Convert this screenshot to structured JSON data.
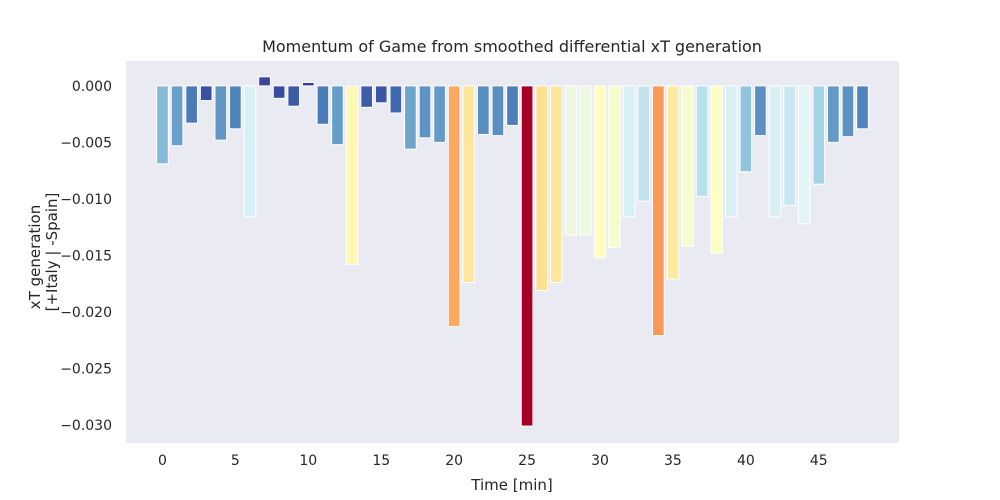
{
  "chart_data": {
    "type": "bar",
    "title": "Momentum of Game from smoothed differential xT generation",
    "xlabel": "Time [min]",
    "ylabel_lines": [
      "xT generation",
      "[+Italy | -Spain]"
    ],
    "xlim": [
      -2.5,
      50.5
    ],
    "ylim": [
      -0.0316,
      0.0022
    ],
    "x_ticks": [
      0,
      5,
      10,
      15,
      20,
      25,
      30,
      35,
      40,
      45
    ],
    "x_tick_labels": [
      "0",
      "5",
      "10",
      "15",
      "20",
      "25",
      "30",
      "35",
      "40",
      "45"
    ],
    "y_ticks": [
      0.0,
      -0.005,
      -0.01,
      -0.015,
      -0.02,
      -0.025,
      -0.03
    ],
    "y_tick_labels": [
      "0.000",
      "−0.005",
      "−0.010",
      "−0.015",
      "−0.020",
      "−0.025",
      "−0.030"
    ],
    "grid": false,
    "background": "#eaeaf2",
    "colormap": "RdYlBu_r",
    "x": [
      0,
      1,
      2,
      3,
      4,
      5,
      6,
      7,
      8,
      9,
      10,
      11,
      12,
      13,
      14,
      15,
      16,
      17,
      18,
      19,
      20,
      21,
      22,
      23,
      24,
      25,
      26,
      27,
      28,
      29,
      30,
      31,
      32,
      33,
      34,
      35,
      36,
      37,
      38,
      39,
      40,
      41,
      42,
      43,
      44,
      45,
      46,
      47,
      48
    ],
    "values": [
      -0.0069,
      -0.0053,
      -0.0033,
      -0.0013,
      -0.0048,
      -0.0038,
      -0.0116,
      0.0008,
      -0.0011,
      -0.0018,
      0.0003,
      -0.0034,
      -0.0052,
      -0.0158,
      -0.0019,
      -0.0015,
      -0.0024,
      -0.0056,
      -0.0046,
      -0.005,
      -0.0213,
      -0.0174,
      -0.0043,
      -0.0044,
      -0.0035,
      -0.0301,
      -0.0181,
      -0.0174,
      -0.0132,
      -0.0132,
      -0.0152,
      -0.0143,
      -0.0116,
      -0.0102,
      -0.0221,
      -0.0171,
      -0.0142,
      -0.0098,
      -0.0148,
      -0.0116,
      -0.0076,
      -0.0044,
      -0.0116,
      -0.0106,
      -0.0122,
      -0.0087,
      -0.005,
      -0.0045,
      -0.0038
    ]
  }
}
